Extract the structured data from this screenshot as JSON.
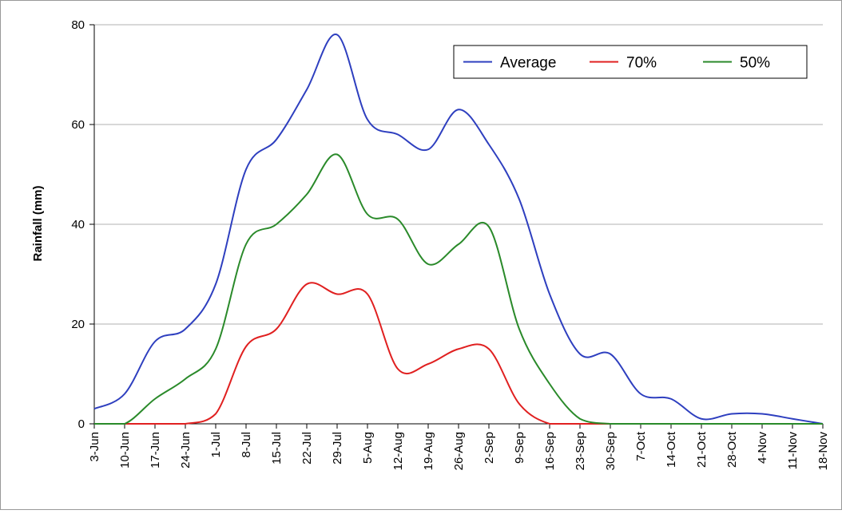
{
  "chart_data": {
    "type": "line",
    "y_label": "Rainfall (mm)",
    "categories": [
      "3-Jun",
      "10-Jun",
      "17-Jun",
      "24-Jun",
      "1-Jul",
      "8-Jul",
      "15-Jul",
      "22-Jul",
      "29-Jul",
      "5-Aug",
      "12-Aug",
      "19-Aug",
      "26-Aug",
      "2-Sep",
      "9-Sep",
      "16-Sep",
      "23-Sep",
      "30-Sep",
      "7-Oct",
      "14-Oct",
      "21-Oct",
      "28-Oct",
      "4-Nov",
      "11-Nov",
      "18-Nov"
    ],
    "series": [
      {
        "name": "Average",
        "color": "#2e3fbf",
        "values": [
          3,
          6,
          16.5,
          19,
          28,
          51,
          57,
          67,
          78,
          61,
          58,
          55,
          63,
          56,
          45,
          26,
          14,
          14,
          6,
          5,
          1,
          2,
          2,
          1,
          0
        ]
      },
      {
        "name": "70%",
        "color": "#e02020",
        "values": [
          0,
          0,
          0,
          0,
          2,
          15.5,
          19,
          28,
          26,
          26,
          11,
          12,
          15,
          15,
          4,
          0,
          0,
          0,
          0,
          0,
          0,
          0,
          0,
          0,
          0
        ]
      },
      {
        "name": "50%",
        "color": "#2a8a2a",
        "values": [
          0,
          0,
          5,
          9,
          15,
          36,
          40,
          46,
          54,
          42,
          41,
          32,
          36,
          39.5,
          19,
          8,
          1,
          0,
          0,
          0,
          0,
          0,
          0,
          0,
          0
        ]
      }
    ],
    "ylim": [
      0,
      80
    ],
    "yticks": [
      0,
      20,
      40,
      60,
      80
    ],
    "grid": true,
    "legend": "top-right"
  }
}
